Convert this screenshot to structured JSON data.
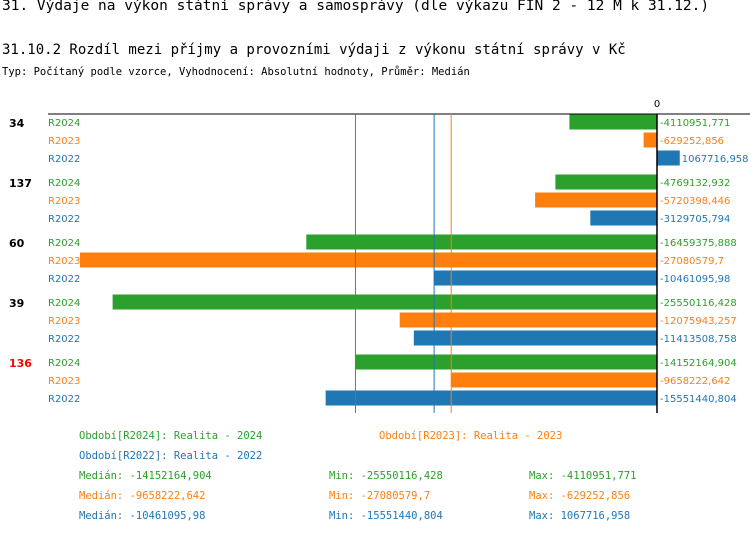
{
  "page_title": "31. Výdaje na výkon státní správy a samosprávy (dle výkazu FIN 2 - 12 M k 31.12.)",
  "chart_data": {
    "type": "bar",
    "orientation": "horizontal",
    "title": "31.10.2 Rozdíl mezi příjmy a provozními výdaji z výkonu státní správy v Kč",
    "subtitle": "Typ: Počítaný podle vzorce, Vyhodnocení: Absolutní hodnoty, Průměr: Medián",
    "zero_label": "0",
    "xlim": [
      -27080579.7,
      1067716.958
    ],
    "series_colors": {
      "R2024": "#2ca02c",
      "R2023": "#ff7f0e",
      "R2022": "#1f77b4"
    },
    "groups": [
      {
        "label": "34",
        "label_color": "#000000",
        "bars": [
          {
            "series": "R2024",
            "value": -4110951.771,
            "value_label": "-4110951,771"
          },
          {
            "series": "R2023",
            "value": -629252.856,
            "value_label": "-629252,856"
          },
          {
            "series": "R2022",
            "value": 1067716.958,
            "value_label": "1067716,958"
          }
        ]
      },
      {
        "label": "137",
        "label_color": "#000000",
        "bars": [
          {
            "series": "R2024",
            "value": -4769132.932,
            "value_label": "-4769132,932"
          },
          {
            "series": "R2023",
            "value": -5720398.446,
            "value_label": "-5720398,446"
          },
          {
            "series": "R2022",
            "value": -3129705.794,
            "value_label": "-3129705,794"
          }
        ]
      },
      {
        "label": "60",
        "label_color": "#000000",
        "bars": [
          {
            "series": "R2024",
            "value": -16459375.888,
            "value_label": "-16459375,888"
          },
          {
            "series": "R2023",
            "value": -27080579.7,
            "value_label": "-27080579,7"
          },
          {
            "series": "R2022",
            "value": -10461095.98,
            "value_label": "-10461095,98"
          }
        ]
      },
      {
        "label": "39",
        "label_color": "#000000",
        "bars": [
          {
            "series": "R2024",
            "value": -25550116.428,
            "value_label": "-25550116,428"
          },
          {
            "series": "R2023",
            "value": -12075943.257,
            "value_label": "-12075943,257"
          },
          {
            "series": "R2022",
            "value": -11413508.758,
            "value_label": "-11413508,758"
          }
        ]
      },
      {
        "label": "136",
        "label_color": "#ff0000",
        "bars": [
          {
            "series": "R2024",
            "value": -14152164.904,
            "value_label": "-14152164,904"
          },
          {
            "series": "R2023",
            "value": -9658222.642,
            "value_label": "-9658222,642"
          },
          {
            "series": "R2022",
            "value": -15551440.804,
            "value_label": "-15551440,804"
          }
        ]
      }
    ],
    "medians": [
      {
        "series": "R2024",
        "value": -14152164.904
      },
      {
        "series": "R2023",
        "value": -9658222.642
      },
      {
        "series": "R2022",
        "value": -10461095.98
      }
    ]
  },
  "footer": {
    "legend": [
      {
        "text": "Období[R2024]: Realita - 2024",
        "color": "#2ca02c"
      },
      {
        "text": "Období[R2023]: Realita - 2023",
        "color": "#ff7f0e"
      },
      {
        "text": "Období[R2022]: Realita - 2022",
        "color": "#1f77b4"
      }
    ],
    "stats": [
      {
        "color": "#2ca02c",
        "median": "Medián: -14152164,904",
        "min": "Min: -25550116,428",
        "max": "Max: -4110951,771"
      },
      {
        "color": "#ff7f0e",
        "median": "Medián: -9658222,642",
        "min": "Min: -27080579,7",
        "max": "Max: -629252,856"
      },
      {
        "color": "#1f77b4",
        "median": "Medián: -10461095,98",
        "min": "Min: -15551440,804",
        "max": "Max: 1067716,958"
      }
    ]
  }
}
